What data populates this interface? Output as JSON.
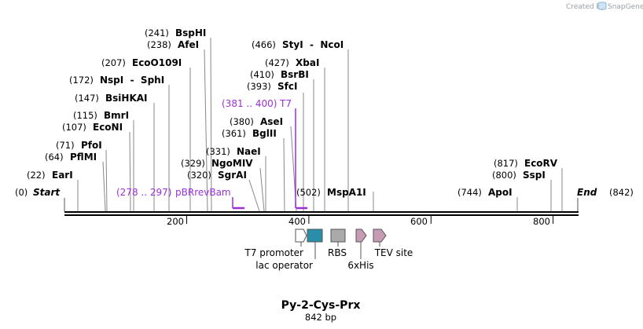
{
  "credit": {
    "prefix": "Created by",
    "brand": "SnapGene"
  },
  "map": {
    "title": "Py-2-Cys-Prx",
    "length_label": "842 bp",
    "length": 842,
    "start_label": "Start",
    "start_pos": "(0)",
    "end_label": "End",
    "end_pos": "(842)",
    "ticks": [
      "200",
      "400",
      "600",
      "800"
    ]
  },
  "sites": [
    {
      "pos": "(22)",
      "name": "EarI"
    },
    {
      "pos": "(64)",
      "name": "PflMI"
    },
    {
      "pos": "(71)",
      "name": "PfoI"
    },
    {
      "pos": "(107)",
      "name": "EcoNI"
    },
    {
      "pos": "(115)",
      "name": "BmrI"
    },
    {
      "pos": "(147)",
      "name": "BsiHKAI"
    },
    {
      "pos": "(172)",
      "name": "NspI  -  SphI"
    },
    {
      "pos": "(207)",
      "name": "EcoO109I"
    },
    {
      "pos": "(238)",
      "name": "AfeI"
    },
    {
      "pos": "(241)",
      "name": "BspHI"
    },
    {
      "pos": "(320)",
      "name": "SgrAI"
    },
    {
      "pos": "(329)",
      "name": "NgoMIV"
    },
    {
      "pos": "(331)",
      "name": "NaeI"
    },
    {
      "pos": "(361)",
      "name": "BglII"
    },
    {
      "pos": "(380)",
      "name": "AseI"
    },
    {
      "pos": "(393)",
      "name": "SfcI"
    },
    {
      "pos": "(410)",
      "name": "BsrBI"
    },
    {
      "pos": "(427)",
      "name": "XbaI"
    },
    {
      "pos": "(466)",
      "name": "StyI  -  NcoI"
    },
    {
      "pos": "(502)",
      "name": "MspA1I"
    },
    {
      "pos": "(744)",
      "name": "ApoI"
    },
    {
      "pos": "(800)",
      "name": "SspI"
    },
    {
      "pos": "(817)",
      "name": "EcoRV"
    }
  ],
  "primers": [
    {
      "range": "(278 .. 297)",
      "name": "pBRrevBam"
    },
    {
      "range": "(381 .. 400)",
      "name": "T7"
    }
  ],
  "features": [
    {
      "name": "T7 promoter",
      "color": "#ffffff"
    },
    {
      "name": "lac operator",
      "color": "#2b8ea8"
    },
    {
      "name": "RBS",
      "color": "#aaaaaa"
    },
    {
      "name": "6xHis",
      "color": "#c79bb3"
    },
    {
      "name": "TEV site",
      "color": "#c79bb3"
    }
  ],
  "colors": {
    "primer": "#9b30d9",
    "line": "#888888",
    "backbone": "#000000"
  }
}
